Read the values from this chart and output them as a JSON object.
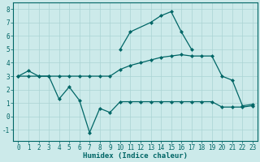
{
  "xlabel": "Humidex (Indice chaleur)",
  "bg_color": "#cceaea",
  "grid_color": "#aad4d4",
  "line_color": "#006666",
  "ylim": [
    -1.8,
    8.5
  ],
  "xlim": [
    -0.5,
    23.5
  ],
  "yticks": [
    -1,
    0,
    1,
    2,
    3,
    4,
    5,
    6,
    7,
    8
  ],
  "xticks": [
    0,
    1,
    2,
    3,
    4,
    5,
    6,
    7,
    8,
    9,
    10,
    11,
    12,
    13,
    14,
    15,
    16,
    17,
    18,
    19,
    20,
    21,
    22,
    23
  ],
  "line1_x": [
    0,
    1,
    2,
    3,
    4,
    5,
    6,
    7,
    8,
    9,
    10,
    11,
    12,
    13,
    14,
    15,
    16,
    17,
    18,
    19,
    20,
    21,
    22,
    23
  ],
  "line1_y": [
    3.0,
    3.0,
    3.0,
    3.0,
    3.0,
    3.0,
    3.0,
    3.0,
    3.0,
    3.0,
    3.5,
    3.8,
    4.0,
    4.2,
    4.4,
    4.5,
    4.6,
    4.5,
    4.5,
    4.5,
    3.0,
    2.7,
    0.8,
    0.9
  ],
  "line2_x": [
    0,
    1,
    2,
    3,
    4,
    5,
    6,
    7,
    8,
    9,
    10,
    11,
    12,
    13,
    14,
    15,
    16,
    17,
    18,
    19,
    20,
    21,
    22,
    23
  ],
  "line2_y": [
    3.0,
    3.4,
    3.0,
    3.0,
    1.3,
    2.2,
    1.2,
    -1.2,
    0.6,
    0.3,
    1.1,
    1.1,
    1.1,
    1.1,
    1.1,
    1.1,
    1.1,
    1.1,
    1.1,
    1.1,
    0.7,
    0.7,
    0.7,
    0.8
  ],
  "line3_x": [
    10,
    11,
    13,
    14,
    15,
    16,
    17
  ],
  "line3_y": [
    5.0,
    6.3,
    7.0,
    7.5,
    7.8,
    6.3,
    5.0
  ],
  "xlabel_fontsize": 6.5,
  "tick_fontsize": 5.5
}
